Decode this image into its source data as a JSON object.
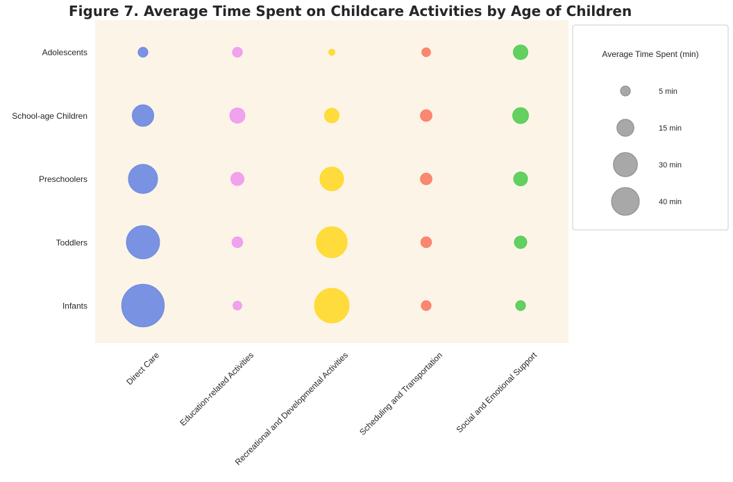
{
  "chart_data": {
    "type": "scatter",
    "title": "Figure 7. Average Time Spent on Childcare Activities by Age of Children",
    "xlabel": "",
    "ylabel": "",
    "categories": [
      "Direct Care",
      "Education-related Activities",
      "Recreational and Developmental Activities",
      "Scheduling and Transportation",
      "Social and Emotional Support"
    ],
    "y_categories": [
      "Infants",
      "Toddlers",
      "Preschoolers",
      "School-age Children",
      "Adolescents"
    ],
    "series": [
      {
        "name": "Direct Care",
        "color": "#6C87E1",
        "values": [
          94,
          57,
          44,
          24,
          5
        ]
      },
      {
        "name": "Education-related Activities",
        "color": "#EE99EE",
        "values": [
          4,
          6,
          9,
          12,
          5
        ]
      },
      {
        "name": "Recreational and Developmental Activities",
        "color": "#FFD928",
        "values": [
          62,
          49,
          29,
          11,
          2
        ]
      },
      {
        "name": "Scheduling and Transportation",
        "color": "#FA7C64",
        "values": [
          5,
          6,
          7,
          7,
          4
        ]
      },
      {
        "name": "Social and Emotional Support",
        "color": "#52CC52",
        "values": [
          5,
          8,
          10,
          13,
          11
        ]
      }
    ],
    "legend": {
      "title": "Average Time Spent (min)",
      "position": "right",
      "entries": [
        {
          "label": "5 min",
          "value": 5
        },
        {
          "label": "15 min",
          "value": 15
        },
        {
          "label": "30 min",
          "value": 30
        },
        {
          "label": "40 min",
          "value": 40
        }
      ]
    },
    "background_color": "#FCF4E6",
    "grid": false
  }
}
